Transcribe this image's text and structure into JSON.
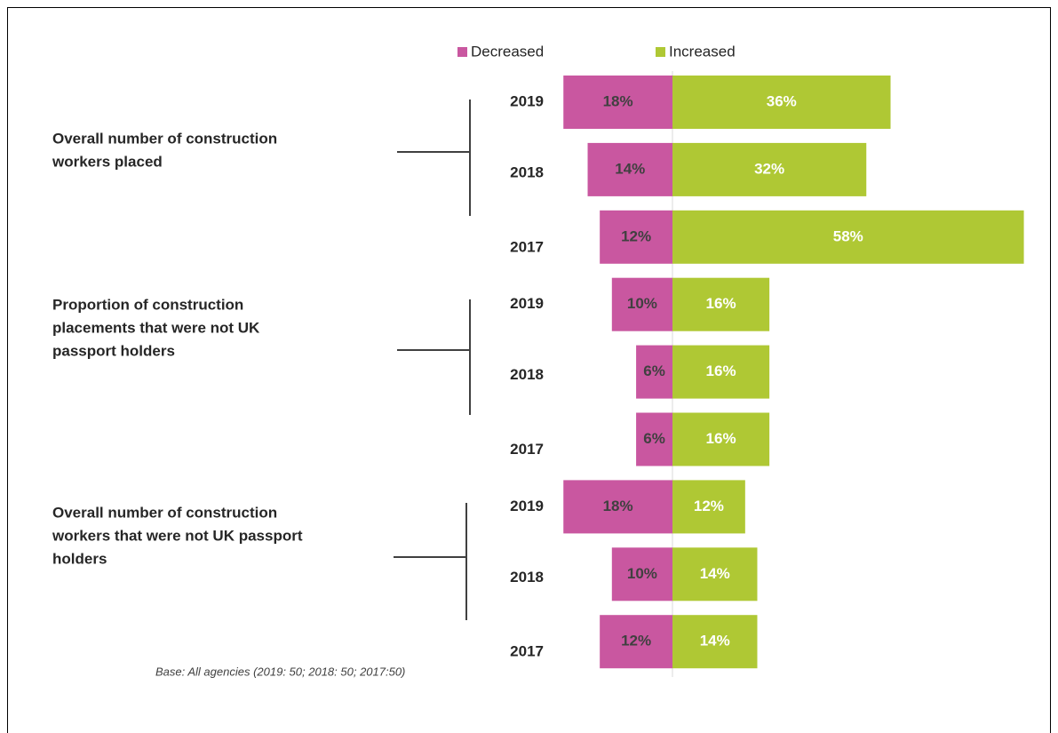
{
  "chart_data": {
    "type": "bar",
    "categories": [
      "2019",
      "2018",
      "2017",
      "2019",
      "2018",
      "2017",
      "2019",
      "2018",
      "2017"
    ],
    "groups": [
      {
        "label": [
          "Overall number of construction",
          "workers placed"
        ]
      },
      {
        "label": [
          "Proportion of construction",
          "placements that were not UK",
          "passport holders"
        ]
      },
      {
        "label": [
          "Overall number of construction",
          "workers that were not UK passport",
          "holders"
        ]
      }
    ],
    "series": [
      {
        "name": "Decreased",
        "color": "#c957a0",
        "direction": "left",
        "values": [
          18,
          14,
          12,
          10,
          6,
          6,
          18,
          10,
          12
        ],
        "value_labels": [
          "18%",
          "14%",
          "12%",
          "10%",
          "6%",
          "6%",
          "18%",
          "10%",
          "12%"
        ]
      },
      {
        "name": "Increased",
        "color": "#afc834",
        "direction": "right",
        "values": [
          36,
          32,
          58,
          16,
          16,
          16,
          12,
          14,
          14
        ],
        "value_labels": [
          "36%",
          "32%",
          "58%",
          "16%",
          "16%",
          "16%",
          "12%",
          "14%",
          "14%"
        ]
      }
    ],
    "footnote": "Base: All agencies (2019: 50; 2018: 50; 2017:50)"
  }
}
